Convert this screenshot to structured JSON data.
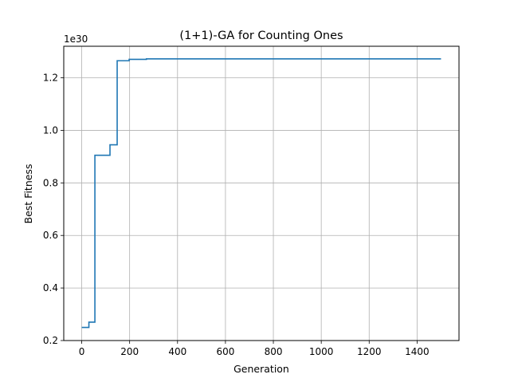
{
  "chart_data": {
    "type": "line",
    "title": "(1+1)-GA for Counting Ones",
    "xlabel": "Generation",
    "ylabel": "Best Fitness",
    "offset_label": "1e30",
    "xlim": [
      -75,
      1575
    ],
    "ylim": [
      0.2,
      1.32
    ],
    "xticks": [
      0,
      200,
      400,
      600,
      800,
      1000,
      1200,
      1400
    ],
    "yticks": [
      0.2,
      0.4,
      0.6,
      0.8,
      1.0,
      1.2
    ],
    "xtick_labels": [
      "0",
      "200",
      "400",
      "600",
      "800",
      "1000",
      "1200",
      "1400"
    ],
    "ytick_labels": [
      "0.2",
      "0.4",
      "0.6",
      "0.8",
      "1.0",
      "1.2"
    ],
    "grid": true,
    "step": true,
    "series": [
      {
        "color": "#1f77b4",
        "points": [
          [
            0,
            0.25
          ],
          [
            30,
            0.25
          ],
          [
            30,
            0.27
          ],
          [
            55,
            0.27
          ],
          [
            55,
            0.905
          ],
          [
            118,
            0.905
          ],
          [
            118,
            0.945
          ],
          [
            148,
            0.945
          ],
          [
            148,
            1.265
          ],
          [
            198,
            1.265
          ],
          [
            198,
            1.27
          ],
          [
            270,
            1.27
          ],
          [
            270,
            1.272
          ],
          [
            1500,
            1.272
          ]
        ]
      }
    ]
  }
}
